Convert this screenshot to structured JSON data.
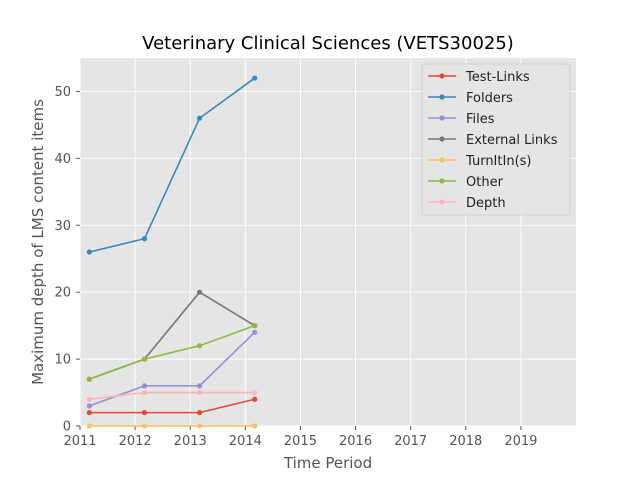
{
  "chart_data": {
    "type": "line",
    "title": "Veterinary Clinical Sciences (VETS30025)",
    "xlabel": "Time Period",
    "ylabel": "Maximum depth of LMS content items",
    "xlim": [
      2011,
      2020
    ],
    "ylim": [
      0,
      55
    ],
    "xticks": [
      "2011",
      "2012",
      "2013",
      "2014",
      "2015",
      "2016",
      "2017",
      "2018",
      "2019"
    ],
    "yticks": [
      "0",
      "10",
      "20",
      "30",
      "40",
      "50"
    ],
    "grid": true,
    "legend_position": "top-right",
    "x": [
      2011.17,
      2012.17,
      2013.17,
      2014.17
    ],
    "series": [
      {
        "name": "Test-Links",
        "color": "#E24A33",
        "values": [
          2,
          2,
          2,
          4
        ]
      },
      {
        "name": "Folders",
        "color": "#348ABD",
        "values": [
          26,
          28,
          46,
          52
        ]
      },
      {
        "name": "Files",
        "color": "#988ED5",
        "values": [
          3,
          6,
          6,
          14
        ]
      },
      {
        "name": "External Links",
        "color": "#777777",
        "values": [
          7,
          10,
          20,
          15
        ]
      },
      {
        "name": "TurnItIn(s)",
        "color": "#FBC15E",
        "values": [
          0,
          0,
          0,
          0
        ]
      },
      {
        "name": "Other",
        "color": "#8EBA42",
        "values": [
          7,
          10,
          12,
          15
        ]
      },
      {
        "name": "Depth",
        "color": "#FFB5B8",
        "values": [
          4,
          5,
          5,
          5
        ]
      }
    ]
  }
}
